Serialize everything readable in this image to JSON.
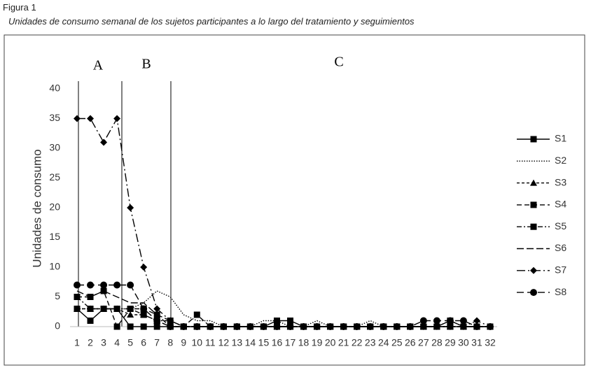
{
  "figure_label": "Figura 1",
  "caption": "Unidades de consumo semanal de los sujetos participantes a lo largo del tratamiento y seguimientos",
  "chart_data": {
    "type": "line",
    "ylabel": "Unidades de consumo",
    "phases": [
      "A",
      "B",
      "C"
    ],
    "categories": [
      "1",
      "2",
      "3",
      "4",
      "5",
      "6",
      "7",
      "8",
      "9",
      "10",
      "11",
      "12",
      "13",
      "14",
      "15",
      "16",
      "17",
      "18",
      "19",
      "20",
      "21",
      "22",
      "23",
      "24",
      "25",
      "26",
      "27",
      "28",
      "29",
      "30",
      "31",
      "32"
    ],
    "ylim": [
      0,
      40
    ],
    "yticks": [
      0,
      5,
      10,
      15,
      20,
      25,
      30,
      35,
      40
    ],
    "grid": false,
    "legend": "right",
    "series": [
      {
        "name": "S1",
        "color": "#000000",
        "dash": "none",
        "marker": "square",
        "values": [
          3,
          1,
          3,
          3,
          0,
          0,
          0,
          0,
          0,
          0,
          0,
          0,
          0,
          0,
          0,
          1,
          1,
          0,
          0,
          0,
          0,
          0,
          0,
          0,
          0,
          0,
          0,
          0,
          1,
          0,
          0,
          0
        ]
      },
      {
        "name": "S2",
        "color": "#000000",
        "dash": "1.5,2",
        "marker": "none",
        "values": [
          3,
          3,
          3,
          3,
          3,
          4,
          6,
          5,
          2,
          1,
          1,
          0,
          0,
          0,
          1,
          1,
          0,
          0,
          1,
          0,
          0,
          0,
          1,
          0,
          0,
          0,
          0,
          0,
          1,
          0,
          0,
          0
        ]
      },
      {
        "name": "S3",
        "color": "#000000",
        "dash": "4,3",
        "marker": "triangle",
        "values": [
          3,
          3,
          3,
          3,
          2,
          2,
          1,
          0,
          0,
          0,
          0,
          0,
          0,
          0,
          0,
          0,
          0,
          0,
          0,
          0,
          0,
          0,
          0,
          0,
          0,
          0,
          0,
          0,
          0,
          0,
          0,
          0
        ]
      },
      {
        "name": "S4",
        "color": "#000000",
        "dash": "7,4",
        "marker": "square",
        "values": [
          5,
          5,
          6,
          0,
          3,
          3,
          2,
          0,
          0,
          2,
          0,
          0,
          0,
          0,
          0,
          0,
          0,
          0,
          0,
          0,
          0,
          0,
          0,
          0,
          0,
          0,
          0,
          0,
          0,
          0,
          0,
          0
        ]
      },
      {
        "name": "S5",
        "color": "#000000",
        "dash": "7,3,2,3",
        "marker": "square",
        "values": [
          5,
          3,
          3,
          3,
          3,
          2,
          1,
          1,
          0,
          0,
          0,
          0,
          0,
          0,
          0,
          0,
          0,
          0,
          0,
          0,
          0,
          0,
          0,
          0,
          0,
          0,
          0,
          0,
          0,
          0,
          0,
          0
        ]
      },
      {
        "name": "S6",
        "color": "#000000",
        "dash": "10,4",
        "marker": "none",
        "values": [
          6,
          5,
          6,
          5,
          4,
          4,
          2,
          1,
          0,
          0,
          0,
          0,
          0,
          0,
          0,
          0,
          0,
          0,
          0,
          0,
          0,
          0,
          0,
          0,
          0,
          0,
          0,
          0,
          0,
          0,
          0,
          0
        ]
      },
      {
        "name": "S7",
        "color": "#000000",
        "dash": "12,4,2,4",
        "marker": "diamond",
        "values": [
          35,
          35,
          31,
          35,
          20,
          10,
          3,
          1,
          0,
          0,
          0,
          0,
          0,
          0,
          0,
          0,
          0,
          0,
          0,
          0,
          0,
          0,
          0,
          0,
          0,
          0,
          0,
          0,
          0,
          0,
          1,
          0
        ]
      },
      {
        "name": "S8",
        "color": "#000000",
        "dash": "10,5",
        "marker": "circle",
        "values": [
          7,
          7,
          7,
          7,
          7,
          3,
          1,
          0,
          0,
          0,
          0,
          0,
          0,
          0,
          0,
          0,
          0,
          0,
          0,
          0,
          0,
          0,
          0,
          0,
          0,
          0,
          1,
          1,
          1,
          1,
          0,
          0
        ]
      }
    ]
  }
}
